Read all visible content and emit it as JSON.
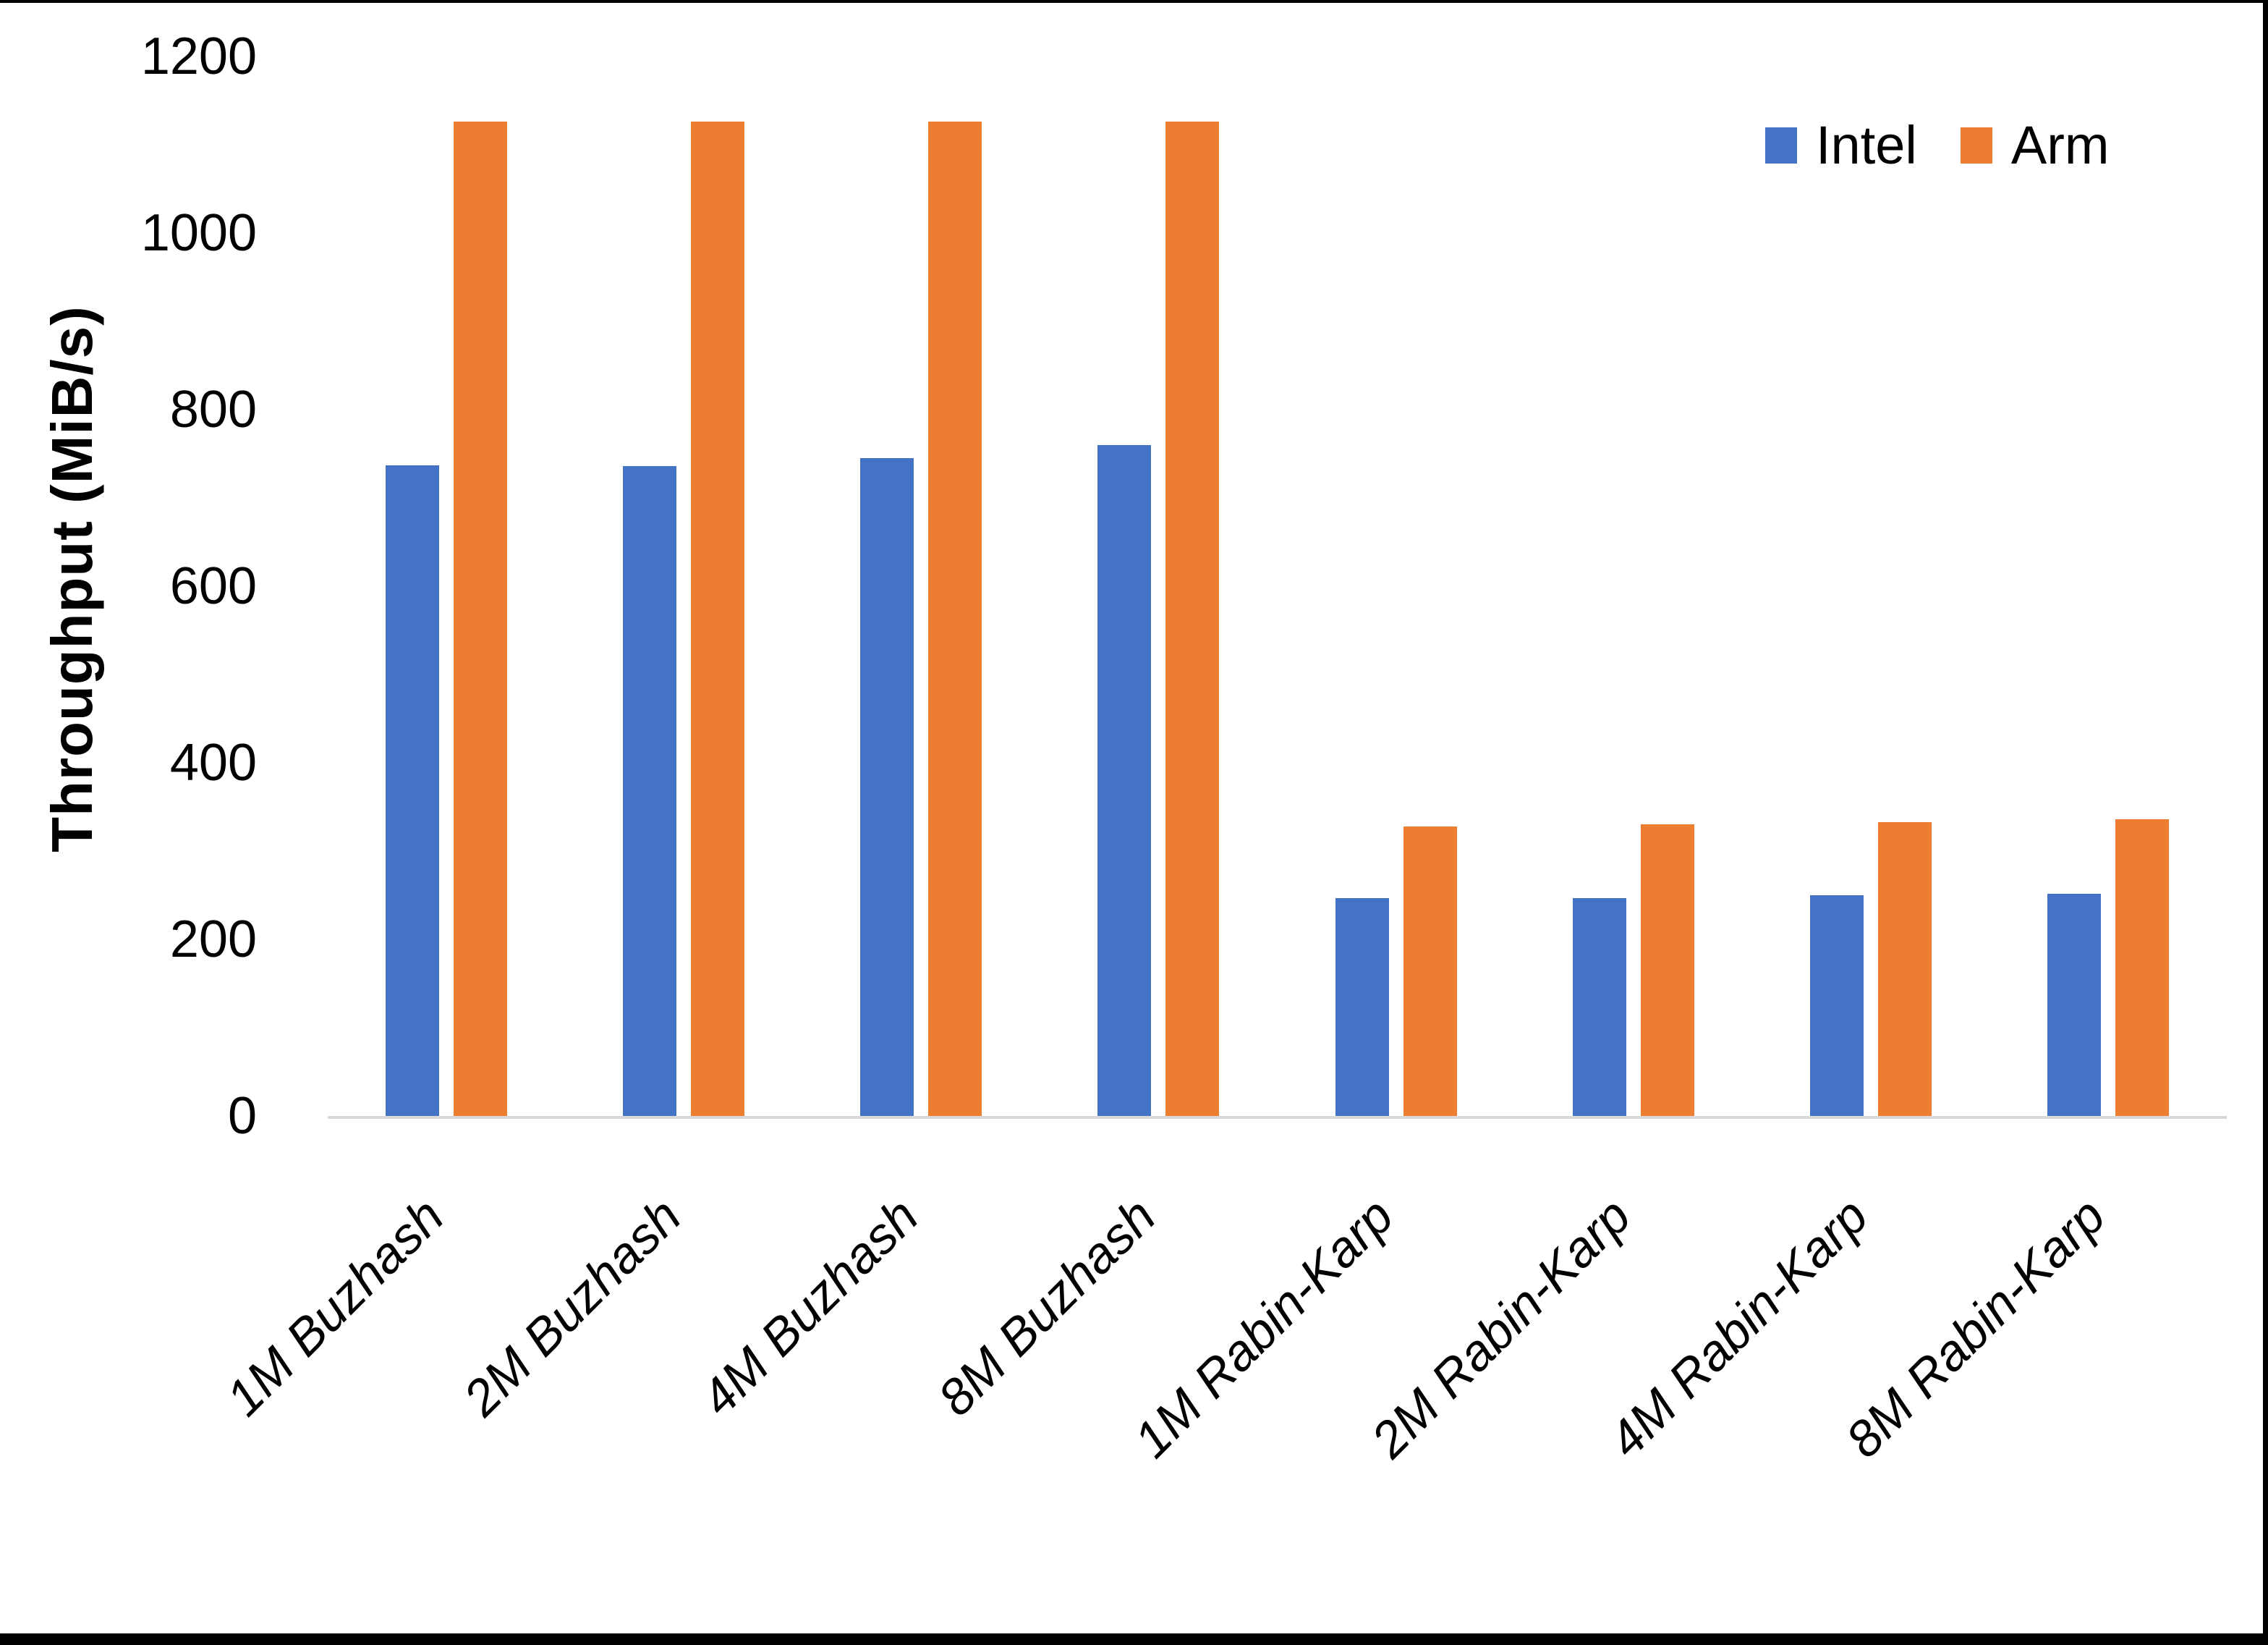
{
  "chart_data": {
    "type": "bar",
    "title": "",
    "categories": [
      "1M Buzhash",
      "2M Buzhash",
      "4M Buzhash",
      "8M Buzhash",
      "1M Rabin-Karp",
      "2M Rabin-Karp",
      "4M Rabin-Karp",
      "8M Rabin-Karp"
    ],
    "series": [
      {
        "name": "Intel",
        "color": "#4472C4",
        "values": [
          737,
          736,
          745,
          760,
          247,
          247,
          250,
          252
        ]
      },
      {
        "name": "Arm",
        "color": "#ED7D31",
        "values": [
          1126,
          1126,
          1126,
          1126,
          328,
          330,
          333,
          336
        ]
      }
    ],
    "xlabel": "",
    "ylabel": "Throughput (MiB/s)",
    "ylim": [
      0,
      1200
    ],
    "yticks": [
      0,
      200,
      400,
      600,
      800,
      1000,
      1200
    ],
    "grid": false,
    "legend_position": "top-right",
    "axis_line_color": "#D9D9D9",
    "text_color": "#000000",
    "background_color": "#FFFFFF",
    "frame_border_color": "#000000"
  }
}
